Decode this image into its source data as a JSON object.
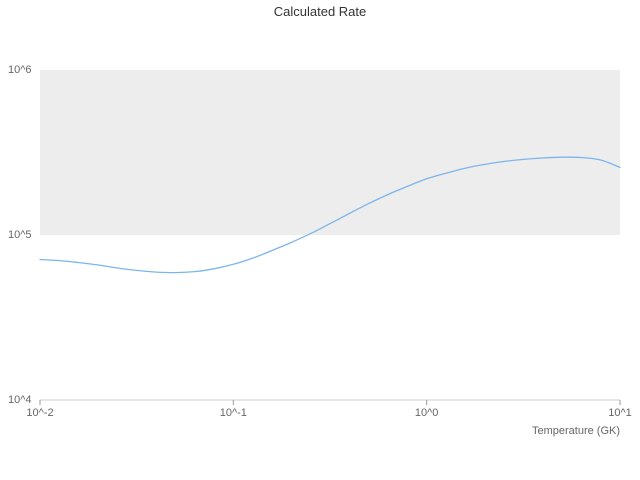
{
  "chart_data": {
    "type": "line",
    "title": "Calculated Rate",
    "xlabel": "Temperature (GK)",
    "ylabel": "",
    "x_scale": "log",
    "y_scale": "log",
    "xlim": [
      0.01,
      10
    ],
    "ylim": [
      10000,
      1000000
    ],
    "x_tick_labels": [
      "10^-2",
      "10^-1",
      "10^0",
      "10^1"
    ],
    "x_tick_values": [
      0.01,
      0.1,
      1,
      10
    ],
    "y_tick_labels": [
      "10^4",
      "10^5",
      "10^6"
    ],
    "y_tick_values": [
      10000,
      100000,
      1000000
    ],
    "legend": "none",
    "band": {
      "from": 100000,
      "to": 1000000,
      "color": "#ededed"
    },
    "series": [
      {
        "name": "calculated-rate",
        "color": "#7cb5ec",
        "x": [
          0.01,
          0.0126,
          0.0158,
          0.02,
          0.0251,
          0.0316,
          0.0398,
          0.0501,
          0.0631,
          0.0794,
          0.1,
          0.126,
          0.158,
          0.2,
          0.251,
          0.316,
          0.398,
          0.501,
          0.631,
          0.794,
          1.0,
          1.26,
          1.58,
          2.0,
          2.51,
          3.16,
          3.98,
          5.01,
          6.31,
          7.94,
          10.0
        ],
        "y": [
          71000,
          70000,
          68100,
          65800,
          63100,
          61000,
          59600,
          59200,
          60000,
          62400,
          66400,
          72400,
          80400,
          90200,
          102000,
          117000,
          135000,
          155000,
          176000,
          197000,
          219000,
          237000,
          254000,
          268000,
          279000,
          287000,
          293000,
          296000,
          295000,
          285000,
          257000
        ]
      }
    ]
  },
  "colors": {
    "band": "#ededed",
    "axis_line": "#cccccc",
    "tick_mark": "#999999",
    "line": "#7cb5ec",
    "title_text": "#333333",
    "tick_text": "#666666"
  }
}
